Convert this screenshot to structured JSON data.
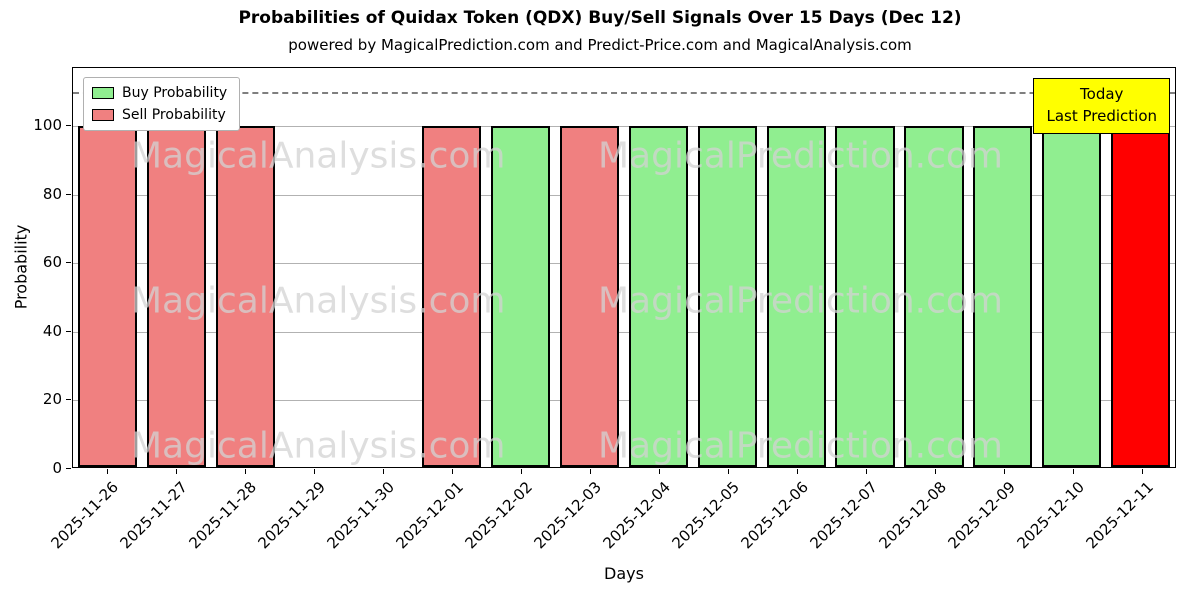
{
  "title": "Probabilities of Quidax Token (QDX) Buy/Sell Signals Over 15 Days (Dec 12)",
  "subtitle": "powered by MagicalPrediction.com and Predict-Price.com and MagicalAnalysis.com",
  "legend": {
    "items": [
      {
        "label": "Buy Probability",
        "color": "#90ee90"
      },
      {
        "label": "Sell Probability",
        "color": "#f08080"
      }
    ]
  },
  "annotation": {
    "line1": "Today",
    "line2": "Last Prediction",
    "bg_color": "#ffff00"
  },
  "watermarks": {
    "texts": [
      "MagicalAnalysis.com",
      "MagicalPrediction.com"
    ],
    "color": "#d3d3d3"
  },
  "colors": {
    "buy": "#90ee90",
    "sell": "#f08080",
    "today": "#ff0000",
    "grid": "#b2b2b2",
    "dashed_line": "#7f7f7f"
  },
  "chart_data": {
    "type": "bar",
    "title": "Probabilities of Quidax Token (QDX) Buy/Sell Signals Over 15 Days (Dec 12)",
    "xlabel": "Days",
    "ylabel": "Probability",
    "ylim": [
      0,
      117
    ],
    "yticks": [
      0,
      20,
      40,
      60,
      80,
      100
    ],
    "dashed_line_y": 110,
    "grid": "horizontal",
    "legend_position": "upper left",
    "categories": [
      "2025-11-26",
      "2025-11-27",
      "2025-11-28",
      "2025-11-29",
      "2025-11-30",
      "2025-12-01",
      "2025-12-02",
      "2025-12-03",
      "2025-12-04",
      "2025-12-05",
      "2025-12-06",
      "2025-12-07",
      "2025-12-08",
      "2025-12-09",
      "2025-12-10",
      "2025-12-11"
    ],
    "bars": [
      {
        "date": "2025-11-26",
        "value": 100,
        "kind": "sell"
      },
      {
        "date": "2025-11-27",
        "value": 100,
        "kind": "sell"
      },
      {
        "date": "2025-11-28",
        "value": 100,
        "kind": "sell"
      },
      {
        "date": "2025-11-29",
        "value": 0,
        "kind": "none"
      },
      {
        "date": "2025-11-30",
        "value": 0,
        "kind": "none"
      },
      {
        "date": "2025-12-01",
        "value": 100,
        "kind": "sell"
      },
      {
        "date": "2025-12-02",
        "value": 100,
        "kind": "buy"
      },
      {
        "date": "2025-12-03",
        "value": 100,
        "kind": "sell"
      },
      {
        "date": "2025-12-04",
        "value": 100,
        "kind": "buy"
      },
      {
        "date": "2025-12-05",
        "value": 100,
        "kind": "buy"
      },
      {
        "date": "2025-12-06",
        "value": 100,
        "kind": "buy"
      },
      {
        "date": "2025-12-07",
        "value": 100,
        "kind": "buy"
      },
      {
        "date": "2025-12-08",
        "value": 100,
        "kind": "buy"
      },
      {
        "date": "2025-12-09",
        "value": 100,
        "kind": "buy"
      },
      {
        "date": "2025-12-10",
        "value": 100,
        "kind": "buy"
      },
      {
        "date": "2025-12-11",
        "value": 100,
        "kind": "today"
      }
    ],
    "series": [
      {
        "name": "Buy Probability",
        "values": [
          0,
          0,
          0,
          0,
          0,
          0,
          100,
          0,
          100,
          100,
          100,
          100,
          100,
          100,
          100,
          0
        ]
      },
      {
        "name": "Sell Probability",
        "values": [
          100,
          100,
          100,
          0,
          0,
          100,
          0,
          100,
          0,
          0,
          0,
          0,
          0,
          0,
          0,
          0
        ]
      },
      {
        "name": "Today (red bar)",
        "values": [
          0,
          0,
          0,
          0,
          0,
          0,
          0,
          0,
          0,
          0,
          0,
          0,
          0,
          0,
          0,
          100
        ]
      }
    ]
  }
}
